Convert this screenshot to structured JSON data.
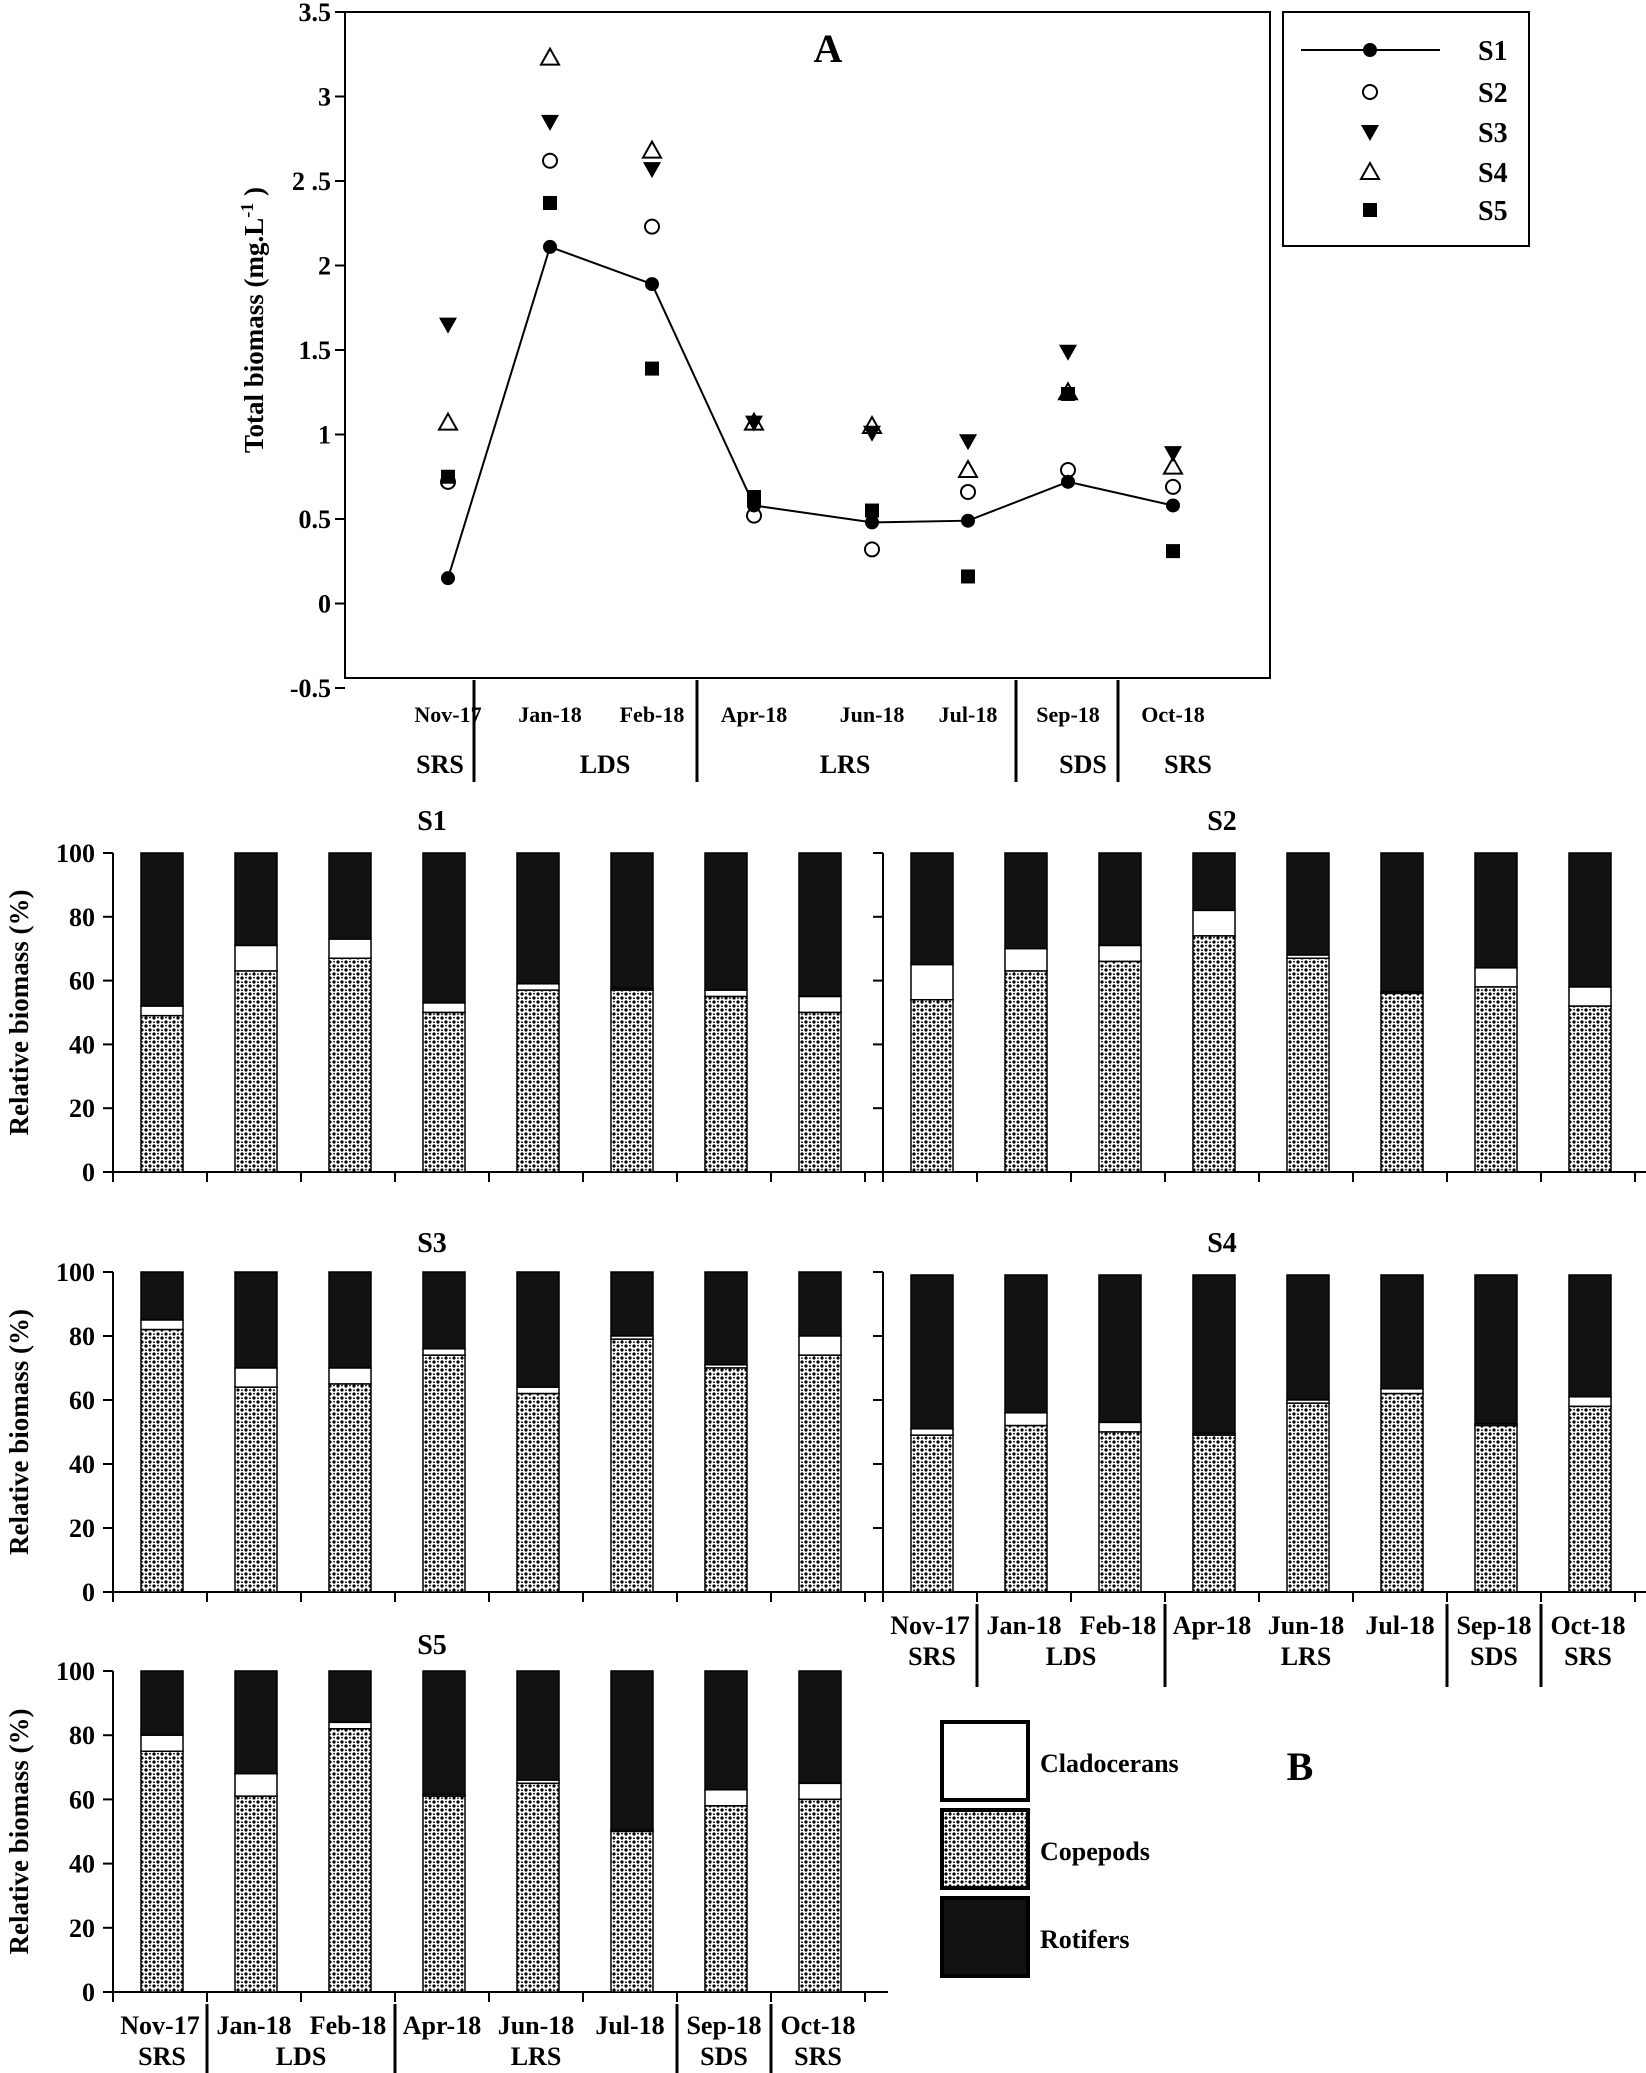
{
  "colors": {
    "cladocerans": "#ffffff",
    "copepods": "#dcdcdc",
    "rotifers": "#111111",
    "ink": "#000000"
  },
  "icons": {
    "s1": "filled-circle-line",
    "s2": "open-circle",
    "s3": "filled-down-triangle",
    "s4": "open-up-triangle",
    "s5": "filled-square"
  },
  "chart_data": [
    {
      "type": "line",
      "panel": "A",
      "title": "A",
      "ylabel": "Total biomass (mg.L",
      "ylabel_sup": "-1",
      "ylabel_end": " )",
      "ylim": [
        -0.5,
        3.5
      ],
      "yticks": [
        "-0.5",
        "0",
        "0.5",
        "1",
        "1.5",
        "2",
        "2 .5",
        "3",
        "3.5"
      ],
      "categories": [
        "Nov-17",
        "Jan-18",
        "Feb-18",
        "Apr-18",
        "Jun-18",
        "Jul-18",
        "Sep-18",
        "Oct-18"
      ],
      "seasons": [
        {
          "label": "SRS",
          "from": 0,
          "to": 0
        },
        {
          "label": "LDS",
          "from": 1,
          "to": 2
        },
        {
          "label": "LRS",
          "from": 3,
          "to": 5
        },
        {
          "label": "SDS",
          "from": 6,
          "to": 6
        },
        {
          "label": "SRS",
          "from": 7,
          "to": 7
        }
      ],
      "legend": "right",
      "series": [
        {
          "name": "S1",
          "marker": "filled-circle",
          "line": true,
          "values": [
            0.15,
            2.11,
            1.89,
            0.58,
            0.48,
            0.49,
            0.72,
            0.58
          ]
        },
        {
          "name": "S2",
          "marker": "open-circle",
          "line": false,
          "values": [
            0.72,
            2.62,
            2.23,
            0.52,
            0.32,
            0.66,
            0.79,
            0.69
          ]
        },
        {
          "name": "S3",
          "marker": "filled-down-triangle",
          "line": false,
          "values": [
            1.65,
            2.85,
            2.57,
            1.07,
            1.01,
            0.96,
            1.49,
            0.89
          ]
        },
        {
          "name": "S4",
          "marker": "open-up-triangle",
          "line": false,
          "values": [
            1.07,
            3.23,
            2.68,
            1.07,
            1.05,
            0.79,
            1.25,
            0.81
          ]
        },
        {
          "name": "S5",
          "marker": "filled-square",
          "line": false,
          "values": [
            0.75,
            2.37,
            1.39,
            0.63,
            0.55,
            0.16,
            1.24,
            0.31
          ]
        }
      ]
    },
    {
      "type": "bar",
      "panel": "B",
      "stacked": true,
      "title": "B",
      "ylabel": "Relative biomass (%)",
      "ylim": [
        0,
        100
      ],
      "yticks": [
        "0",
        "20",
        "40",
        "60",
        "80",
        "100"
      ],
      "categories": [
        "Nov-17",
        "Jan-18",
        "Feb-18",
        "Apr-18",
        "Jun-18",
        "Jul-18",
        "Sep-18",
        "Oct-18"
      ],
      "seasons": [
        {
          "label": "SRS",
          "from": 0,
          "to": 0
        },
        {
          "label": "LDS",
          "from": 1,
          "to": 2
        },
        {
          "label": "LRS",
          "from": 3,
          "to": 5
        },
        {
          "label": "SDS",
          "from": 6,
          "to": 6
        },
        {
          "label": "SRS",
          "from": 7,
          "to": 7
        }
      ],
      "legend": [
        "Cladocerans",
        "Copepods",
        "Rotifers"
      ],
      "panels": [
        {
          "name": "S1",
          "copepods": [
            49,
            63,
            67,
            50,
            57,
            57,
            55,
            50
          ],
          "cladocerans": [
            3,
            8,
            6,
            3,
            2,
            0.5,
            2,
            5
          ],
          "rotifers": [
            48,
            29,
            27,
            47,
            41,
            42.5,
            43,
            45
          ]
        },
        {
          "name": "S2",
          "copepods": [
            54,
            63,
            66,
            74,
            67,
            56,
            58,
            52
          ],
          "cladocerans": [
            11,
            7,
            5,
            8,
            1,
            0.5,
            6,
            6
          ],
          "rotifers": [
            35,
            30,
            29,
            18,
            32,
            43.5,
            36,
            42
          ]
        },
        {
          "name": "S3",
          "copepods": [
            82,
            64,
            65,
            74,
            62,
            79,
            70,
            74
          ],
          "cladocerans": [
            3,
            6,
            5,
            2,
            2,
            1,
            1,
            6
          ],
          "rotifers": [
            15,
            30,
            30,
            24,
            36,
            20,
            29,
            20
          ]
        },
        {
          "name": "S4",
          "copepods": [
            49,
            52,
            50,
            49,
            59,
            62,
            52,
            58
          ],
          "cladocerans": [
            2,
            4,
            3,
            0.5,
            1,
            1.5,
            0.5,
            3
          ],
          "rotifers": [
            48,
            43,
            46,
            49.5,
            39,
            35.5,
            46.5,
            38
          ]
        },
        {
          "name": "S5",
          "copepods": [
            75,
            61,
            82,
            61,
            65,
            50,
            58,
            60
          ],
          "cladocerans": [
            5,
            7,
            2,
            0.5,
            1,
            0.5,
            5,
            5
          ],
          "rotifers": [
            20,
            32,
            16,
            38.5,
            34,
            49.5,
            37,
            35
          ]
        }
      ]
    }
  ]
}
